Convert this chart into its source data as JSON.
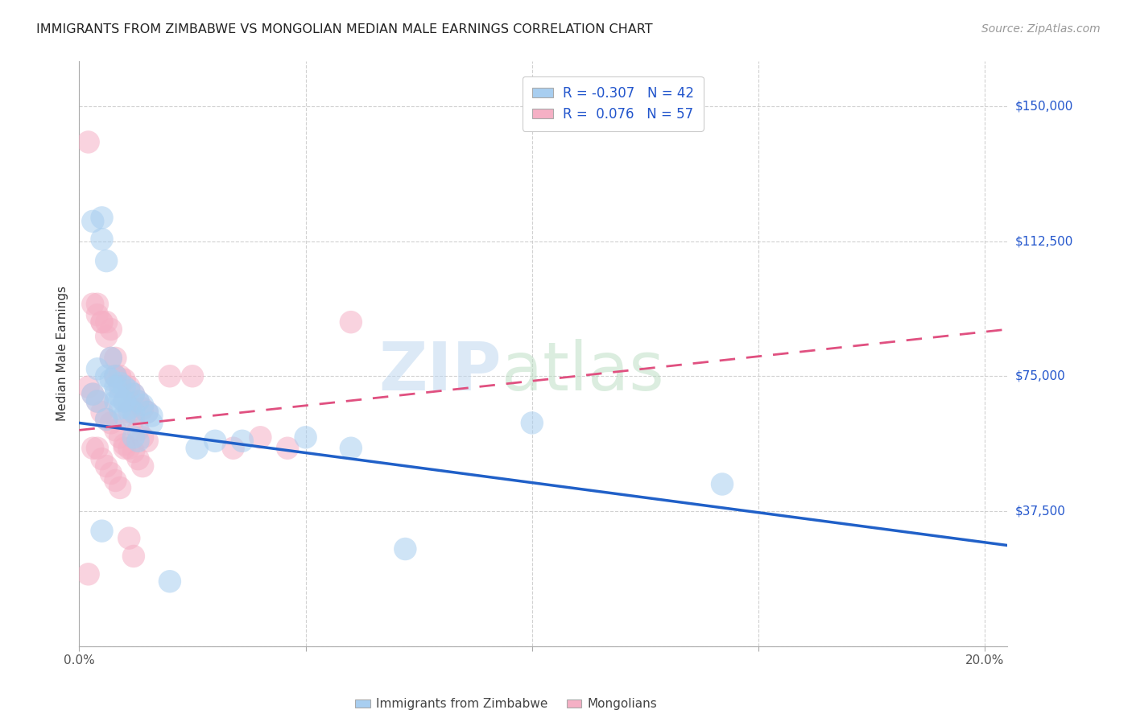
{
  "title": "IMMIGRANTS FROM ZIMBABWE VS MONGOLIAN MEDIAN MALE EARNINGS CORRELATION CHART",
  "source": "Source: ZipAtlas.com",
  "ylabel": "Median Male Earnings",
  "xlim": [
    0.0,
    0.205
  ],
  "ylim": [
    0,
    162500
  ],
  "yticks": [
    0,
    37500,
    75000,
    112500,
    150000
  ],
  "ytick_labels": [
    "",
    "$37,500",
    "$75,000",
    "$112,500",
    "$150,000"
  ],
  "xticks": [
    0.0,
    0.05,
    0.1,
    0.15,
    0.2
  ],
  "blue_R": -0.307,
  "blue_N": 42,
  "pink_R": 0.076,
  "pink_N": 57,
  "blue_color": "#a8cef0",
  "pink_color": "#f5b0c5",
  "blue_trend_color": "#2060c8",
  "pink_trend_color": "#e05080",
  "blue_label": "Immigrants from Zimbabwe",
  "pink_label": "Mongolians",
  "blue_line_x": [
    0.0,
    0.205
  ],
  "blue_line_y": [
    62000,
    28000
  ],
  "pink_line_x": [
    0.0,
    0.205
  ],
  "pink_line_y": [
    60000,
    88000
  ],
  "blue_scatter_x": [
    0.003,
    0.005,
    0.005,
    0.006,
    0.007,
    0.008,
    0.009,
    0.01,
    0.011,
    0.012,
    0.013,
    0.014,
    0.015,
    0.016,
    0.004,
    0.006,
    0.007,
    0.008,
    0.009,
    0.01,
    0.011,
    0.012,
    0.008,
    0.008,
    0.009,
    0.01,
    0.012,
    0.013,
    0.016,
    0.003,
    0.004,
    0.006,
    0.026,
    0.03,
    0.06,
    0.1,
    0.142,
    0.072,
    0.036,
    0.05,
    0.005,
    0.02
  ],
  "blue_scatter_y": [
    118000,
    119000,
    113000,
    107000,
    80000,
    75000,
    73000,
    72000,
    71000,
    70000,
    68000,
    67000,
    65000,
    64000,
    77000,
    75000,
    74000,
    72000,
    69000,
    68000,
    66000,
    65000,
    70000,
    68000,
    66000,
    64000,
    58000,
    57000,
    62000,
    70000,
    68000,
    63000,
    55000,
    57000,
    55000,
    62000,
    45000,
    27000,
    57000,
    58000,
    32000,
    18000
  ],
  "pink_scatter_x": [
    0.002,
    0.004,
    0.005,
    0.006,
    0.007,
    0.008,
    0.008,
    0.009,
    0.01,
    0.011,
    0.012,
    0.013,
    0.014,
    0.015,
    0.003,
    0.004,
    0.005,
    0.006,
    0.007,
    0.008,
    0.009,
    0.01,
    0.011,
    0.012,
    0.013,
    0.014,
    0.015,
    0.002,
    0.003,
    0.004,
    0.005,
    0.006,
    0.007,
    0.008,
    0.009,
    0.01,
    0.011,
    0.012,
    0.013,
    0.014,
    0.003,
    0.004,
    0.005,
    0.006,
    0.007,
    0.008,
    0.009,
    0.01,
    0.011,
    0.012,
    0.02,
    0.025,
    0.034,
    0.04,
    0.046,
    0.002,
    0.06
  ],
  "pink_scatter_y": [
    140000,
    95000,
    90000,
    90000,
    88000,
    80000,
    75000,
    75000,
    74000,
    72000,
    70000,
    68000,
    66000,
    65000,
    95000,
    92000,
    90000,
    86000,
    80000,
    75000,
    72000,
    68000,
    65000,
    63000,
    60000,
    58000,
    57000,
    72000,
    70000,
    68000,
    65000,
    63000,
    62000,
    60000,
    58000,
    56000,
    55000,
    54000,
    52000,
    50000,
    55000,
    55000,
    52000,
    50000,
    48000,
    46000,
    44000,
    55000,
    30000,
    25000,
    75000,
    75000,
    55000,
    58000,
    55000,
    20000,
    90000
  ]
}
